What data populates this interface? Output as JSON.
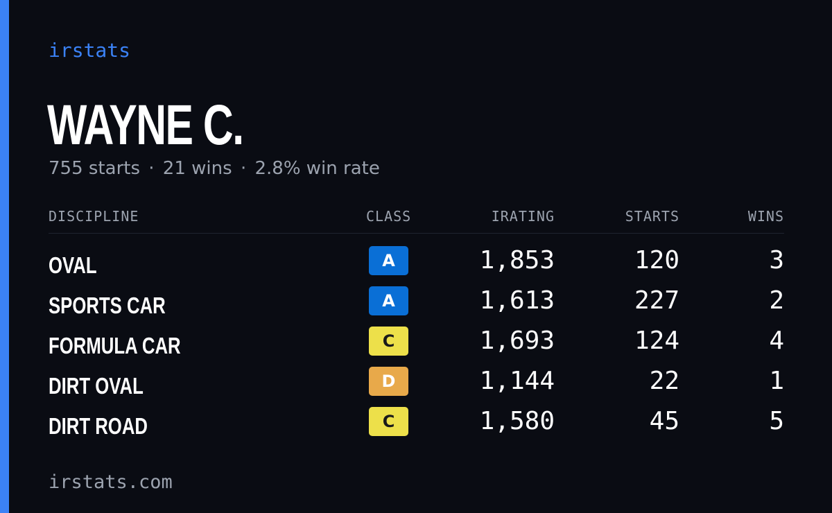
{
  "brand": "irstats",
  "driver": {
    "name": "WAYNE C.",
    "starts_text": "755 starts",
    "wins_text": "21 wins",
    "win_rate_text": "2.8% win rate",
    "separator": "·"
  },
  "table": {
    "headers": {
      "discipline": "DISCIPLINE",
      "class": "CLASS",
      "irating": "IRATING",
      "starts": "STARTS",
      "wins": "WINS"
    },
    "rows": [
      {
        "discipline": "OVAL",
        "class": "A",
        "irating": "1,853",
        "starts": "120",
        "wins": "3"
      },
      {
        "discipline": "SPORTS CAR",
        "class": "A",
        "irating": "1,613",
        "starts": "227",
        "wins": "2"
      },
      {
        "discipline": "FORMULA CAR",
        "class": "C",
        "irating": "1,693",
        "starts": "124",
        "wins": "4"
      },
      {
        "discipline": "DIRT OVAL",
        "class": "D",
        "irating": "1,144",
        "starts": "22",
        "wins": "1"
      },
      {
        "discipline": "DIRT ROAD",
        "class": "C",
        "irating": "1,580",
        "starts": "45",
        "wins": "5"
      }
    ]
  },
  "class_colors": {
    "A": {
      "bg": "#0a6fd6",
      "fg": "#ffffff"
    },
    "C": {
      "bg": "#ede04a",
      "fg": "#1a1a1a"
    },
    "D": {
      "bg": "#e8a94a",
      "fg": "#ffffff"
    }
  },
  "colors": {
    "accent": "#3b82f6",
    "background": "#0a0c13",
    "muted": "#9ca3af"
  },
  "footer": "irstats.com"
}
